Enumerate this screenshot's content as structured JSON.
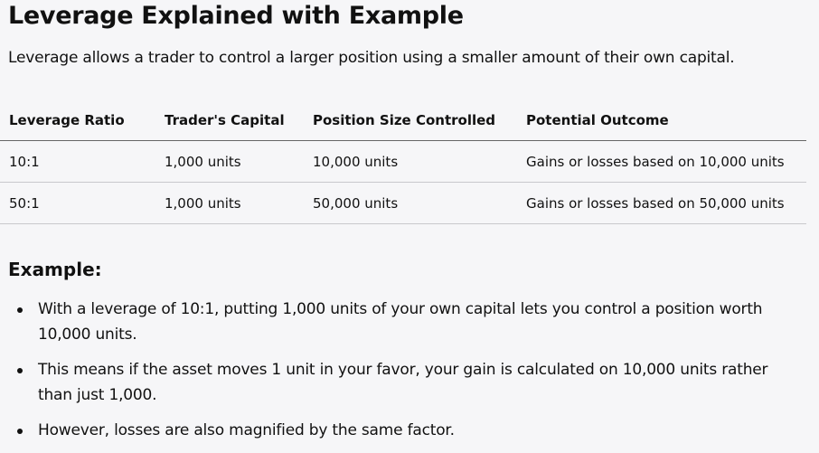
{
  "title": "Leverage Explained with Example",
  "intro": "Leverage allows a trader to control a larger position using a smaller amount of their own capital.",
  "table": {
    "headers": [
      "Leverage Ratio",
      "Trader's Capital",
      "Position Size Controlled",
      "Potential Outcome"
    ],
    "rows": [
      [
        "10:1",
        "1,000 units",
        "10,000 units",
        "Gains or losses based on 10,000 units"
      ],
      [
        "50:1",
        "1,000 units",
        "50,000 units",
        "Gains or losses based on 50,000 units"
      ]
    ]
  },
  "example": {
    "heading": "Example:",
    "bullets": [
      "With a leverage of 10:1, putting 1,000 units of your own capital lets you control a position worth 10,000 units.",
      "This means if the asset moves 1 unit in your favor, your gain is calculated on 10,000 units rather than just 1,000.",
      "However, losses are also magnified by the same factor."
    ]
  }
}
